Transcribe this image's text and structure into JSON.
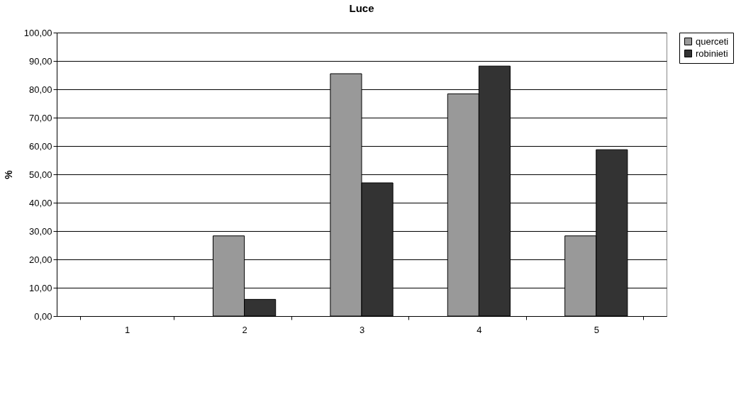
{
  "chart_data": {
    "type": "bar",
    "title": "Luce",
    "ylabel": "%",
    "categories": [
      "1",
      "2",
      "3",
      "4",
      "5"
    ],
    "series": [
      {
        "name": "querceti",
        "color": "#999999",
        "values": [
          null,
          28.3,
          85.5,
          78.4,
          28.3
        ]
      },
      {
        "name": "robinieti",
        "color": "#333333",
        "values": [
          null,
          5.9,
          47.0,
          88.2,
          58.7
        ]
      }
    ],
    "ylim": [
      0,
      100
    ],
    "yticks": [
      {
        "value": 0,
        "label": "0,00"
      },
      {
        "value": 10,
        "label": "10,00"
      },
      {
        "value": 20,
        "label": "20,00"
      },
      {
        "value": 30,
        "label": "30,00"
      },
      {
        "value": 40,
        "label": "40,00"
      },
      {
        "value": 50,
        "label": "50,00"
      },
      {
        "value": 60,
        "label": "60,00"
      },
      {
        "value": 70,
        "label": "70,00"
      },
      {
        "value": 80,
        "label": "80,00"
      },
      {
        "value": 90,
        "label": "90,00"
      },
      {
        "value": 100,
        "label": "100,00"
      }
    ],
    "grid": "y",
    "legend": "right"
  }
}
